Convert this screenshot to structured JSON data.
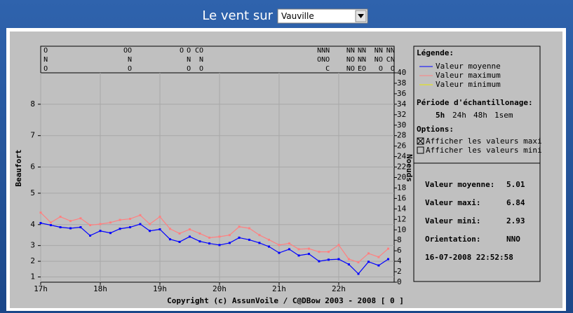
{
  "header": {
    "title": "Le vent sur",
    "location": "Vauville"
  },
  "chart_data": {
    "type": "line",
    "y_label": "Beaufort",
    "y2_label": "Noeuds",
    "x": [
      17,
      17.17,
      17.33,
      17.5,
      17.67,
      17.83,
      18,
      18.17,
      18.33,
      18.5,
      18.67,
      18.83,
      19,
      19.17,
      19.33,
      19.5,
      19.67,
      19.83,
      20,
      20.17,
      20.33,
      20.5,
      20.67,
      20.83,
      21,
      21.17,
      21.33,
      21.5,
      21.67,
      21.83,
      22,
      22.17,
      22.33,
      22.5,
      22.67,
      22.83
    ],
    "xlim": [
      17,
      22.93
    ],
    "xticks": [
      {
        "value": 17,
        "label": "17h"
      },
      {
        "value": 18,
        "label": "18h"
      },
      {
        "value": 19,
        "label": "19h"
      },
      {
        "value": 20,
        "label": "20h"
      },
      {
        "value": 21,
        "label": "21h"
      },
      {
        "value": 22,
        "label": "22h"
      }
    ],
    "ylim": [
      0,
      40
    ],
    "yticks": [
      1,
      {
        "value": 4,
        "label": "2"
      },
      {
        "value": 7,
        "label": "3"
      },
      {
        "value": 11,
        "label": "4"
      },
      {
        "value": 17,
        "label": "5"
      },
      {
        "value": 22,
        "label": "6"
      },
      {
        "value": 28,
        "label": "7"
      },
      {
        "value": 34,
        "label": "8"
      }
    ],
    "y2lim": [
      0,
      40
    ],
    "y2ticks": [
      0,
      2,
      4,
      6,
      8,
      10,
      12,
      14,
      16,
      18,
      20,
      22,
      24,
      26,
      28,
      30,
      32,
      34,
      36,
      38,
      40
    ],
    "grid": true,
    "series": [
      {
        "name": "Valeur moyenne",
        "color": "#0000ff",
        "axis": "y2",
        "values": [
          11.3,
          10.9,
          10.5,
          10.3,
          10.5,
          8.9,
          9.8,
          9.4,
          10.2,
          10.5,
          11.1,
          9.8,
          10.1,
          8.2,
          7.7,
          8.7,
          7.8,
          7.4,
          7.1,
          7.5,
          8.5,
          8.1,
          7.5,
          6.8,
          5.6,
          6.3,
          5.1,
          5.4,
          4.0,
          4.3,
          4.4,
          3.4,
          1.6,
          3.9,
          3.2,
          4.4
        ]
      },
      {
        "name": "Valeur maximum",
        "color": "#ff8080",
        "axis": "y2",
        "values": [
          13.3,
          11.4,
          12.5,
          11.7,
          12.2,
          10.9,
          11.1,
          11.4,
          11.9,
          12.1,
          12.8,
          11.1,
          12.5,
          10.2,
          9.3,
          10.1,
          9.3,
          8.5,
          8.7,
          9.0,
          10.6,
          10.3,
          9.0,
          8.1,
          7.1,
          7.4,
          6.3,
          6.4,
          5.8,
          5.8,
          7.1,
          4.4,
          3.8,
          5.5,
          4.8,
          6.4
        ]
      }
    ],
    "extra_legend": [
      {
        "name": "Valeur minimum",
        "color": "#e8e800"
      }
    ],
    "directions": [
      {
        "x": 17.12,
        "rows": [
          "O",
          "N",
          "O"
        ]
      },
      {
        "x": 18.53,
        "rows": [
          "OO",
          "N",
          "O"
        ]
      },
      {
        "x": 19.4,
        "rows": [
          "O"
        ]
      },
      {
        "x": 19.52,
        "rows": [
          "O",
          "N",
          "O"
        ]
      },
      {
        "x": 19.73,
        "rows": [
          "CO",
          "N",
          "O"
        ]
      },
      {
        "x": 21.85,
        "rows": [
          "NNN",
          "ONO",
          "C"
        ]
      },
      {
        "x": 22.27,
        "rows": [
          "NN",
          "NO",
          "NO"
        ]
      },
      {
        "x": 22.46,
        "rows": [
          "NN",
          "NN",
          "EO"
        ]
      },
      {
        "x": 22.74,
        "rows": [
          "NN",
          "NO",
          "O"
        ]
      },
      {
        "x": 22.94,
        "rows": [
          "NN",
          "CN",
          "O"
        ]
      }
    ]
  },
  "legend_panel": {
    "title": "Légende:",
    "period_title": "Période d'échantillonage:",
    "periods": [
      "5h",
      "24h",
      "48h",
      "1sem"
    ],
    "selected_period": 0,
    "options_title": "Options:",
    "options": [
      {
        "label": "Afficher les valeurs maxi",
        "checked": true
      },
      {
        "label": "Afficher les valeurs mini",
        "checked": false
      }
    ]
  },
  "stats": {
    "rows": [
      [
        "Valeur moyenne:",
        "5.01"
      ],
      [
        "Valeur maxi:",
        "6.84"
      ],
      [
        "Valeur mini:",
        "2.93"
      ],
      [
        "Orientation:",
        "NNO"
      ]
    ],
    "timestamp": "16-07-2008 22:52:58"
  },
  "footer": "Copyright (c) AssunVoile / C@DBow 2003 - 2008 [ 0 ]"
}
